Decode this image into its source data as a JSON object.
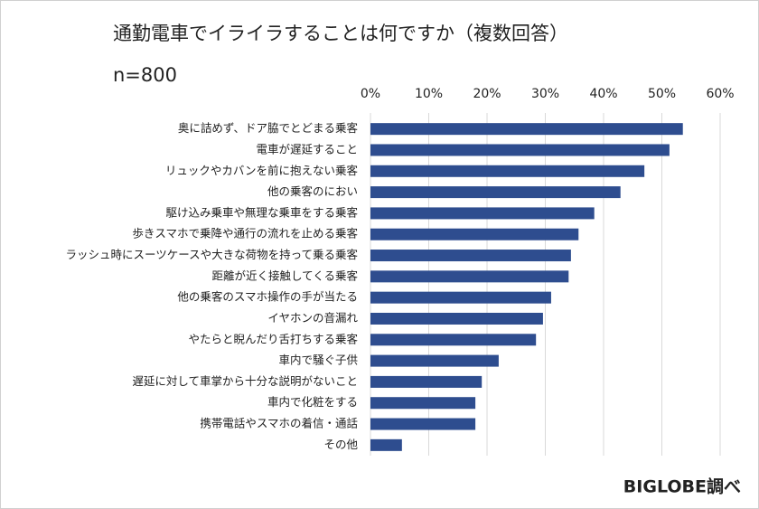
{
  "chart_data": {
    "type": "barh",
    "title": "通勤電車でイライラすることは何ですか（複数回答）",
    "subtitle": "n=800",
    "source": "BIGLOBE調べ",
    "categories": [
      "奥に詰めず、ドア脇でとどまる乗客",
      "電車が遅延すること",
      "リュックやカバンを前に抱えない乗客",
      "他の乗客のにおい",
      "駆け込み乗車や無理な乗車をする乗客",
      "歩きスマホで乗降や通行の流れを止める乗客",
      "ラッシュ時にスーツケースや大きな荷物を持って乗る乗客",
      "距離が近く接触してくる乗客",
      "他の乗客のスマホ操作の手が当たる",
      "イヤホンの音漏れ",
      "やたらと睨んだり舌打ちする乗客",
      "車内で騒ぐ子供",
      "遅延に対して車掌から十分な説明がないこと",
      "車内で化粧をする",
      "携帯電話やスマホの着信・通話",
      "その他"
    ],
    "values": [
      53.6,
      51.3,
      47.0,
      42.9,
      38.4,
      35.7,
      34.4,
      34.0,
      31.0,
      29.6,
      28.4,
      22.0,
      19.1,
      18.0,
      18.0,
      5.4
    ],
    "color": "#2e4d8f",
    "xlim": [
      0,
      60
    ],
    "xticks": [
      {
        "value": 0,
        "label": "0%"
      },
      {
        "value": 10,
        "label": "10%"
      },
      {
        "value": 20,
        "label": "20%"
      },
      {
        "value": 30,
        "label": "30%"
      },
      {
        "value": 40,
        "label": "40%"
      },
      {
        "value": 50,
        "label": "50%"
      },
      {
        "value": 60,
        "label": "60%"
      }
    ],
    "grid": true
  }
}
